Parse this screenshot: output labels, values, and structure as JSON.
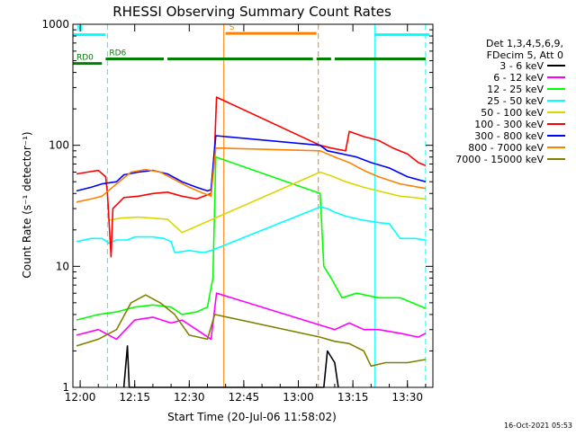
{
  "chart_data": {
    "type": "line",
    "title": "RHESSI Observing Summary Count Rates",
    "xlabel": "Start Time (20-Jul-06 11:58:02)",
    "ylabel": "Count Rate (s⁻¹ detector⁻¹)",
    "yscale": "log",
    "xlim": [
      "11:58",
      "13:37"
    ],
    "ylim": [
      1,
      1000
    ],
    "x_ticks": [
      "12:00",
      "12:15",
      "12:30",
      "12:45",
      "13:00",
      "13:15",
      "13:30"
    ],
    "y_ticks": [
      1,
      10,
      100,
      1000
    ],
    "grid": false,
    "legend_position": "right",
    "legend_header": [
      "Det 1,3,4,5,6,9,",
      "FDecim 5, Att 0"
    ],
    "footer_timestamp": "16-Oct-2021 05:53",
    "series": [
      {
        "name": "3 - 6 keV",
        "color": "#000000",
        "points": [
          [
            "12:12",
            1.0
          ],
          [
            "12:13",
            2.2
          ],
          [
            "12:13.5",
            1.0
          ],
          [
            "12:37",
            1.0
          ],
          [
            "13:07",
            1.0
          ],
          [
            "13:08",
            2.0
          ],
          [
            "13:10",
            1.6
          ],
          [
            "13:11",
            1.0
          ]
        ]
      },
      {
        "name": "6 - 12 keV",
        "color": "#ff00ff",
        "points": [
          [
            "11:59",
            2.7
          ],
          [
            "12:05",
            3.0
          ],
          [
            "12:10",
            2.5
          ],
          [
            "12:15",
            3.6
          ],
          [
            "12:20",
            3.8
          ],
          [
            "12:25",
            3.4
          ],
          [
            "12:28",
            3.6
          ],
          [
            "12:32",
            3.0
          ],
          [
            "12:36",
            2.5
          ],
          [
            "12:37.5",
            6.0
          ],
          [
            "13:07",
            3.2
          ],
          [
            "13:10",
            3.0
          ],
          [
            "13:14",
            3.4
          ],
          [
            "13:18",
            3.0
          ],
          [
            "13:22",
            3.0
          ],
          [
            "13:28",
            2.8
          ],
          [
            "13:33",
            2.6
          ],
          [
            "13:35",
            2.8
          ]
        ]
      },
      {
        "name": "12 - 25 keV",
        "color": "#00ff00",
        "points": [
          [
            "11:59",
            3.6
          ],
          [
            "12:05",
            4.0
          ],
          [
            "12:10",
            4.2
          ],
          [
            "12:15",
            4.6
          ],
          [
            "12:20",
            4.8
          ],
          [
            "12:25",
            4.6
          ],
          [
            "12:28",
            4.0
          ],
          [
            "12:32",
            4.2
          ],
          [
            "12:35",
            4.6
          ],
          [
            "12:36.5",
            8.0
          ],
          [
            "12:37.3",
            80.0
          ],
          [
            "13:06",
            40.0
          ],
          [
            "13:07",
            10.0
          ],
          [
            "13:09",
            8.0
          ],
          [
            "13:12",
            5.5
          ],
          [
            "13:16",
            6.0
          ],
          [
            "13:22",
            5.5
          ],
          [
            "13:28",
            5.5
          ],
          [
            "13:35",
            4.5
          ]
        ]
      },
      {
        "name": "25 - 50 keV",
        "color": "#00ffff",
        "points": [
          [
            "11:59",
            16.0
          ],
          [
            "12:03",
            17.0
          ],
          [
            "12:06",
            17.0
          ],
          [
            "12:08",
            15.5
          ],
          [
            "12:10",
            16.5
          ],
          [
            "12:13",
            16.5
          ],
          [
            "12:15",
            17.5
          ],
          [
            "12:20",
            17.5
          ],
          [
            "12:23",
            17.0
          ],
          [
            "12:25",
            16.0
          ],
          [
            "12:26",
            13.0
          ],
          [
            "12:30",
            13.5
          ],
          [
            "12:34",
            13.0
          ],
          [
            "12:36",
            13.5
          ],
          [
            "13:06",
            31.0
          ],
          [
            "13:08",
            30.0
          ],
          [
            "13:10",
            28.0
          ],
          [
            "13:13",
            26.0
          ],
          [
            "13:18",
            24.0
          ],
          [
            "13:22",
            23.0
          ],
          [
            "13:25",
            22.5
          ],
          [
            "13:28",
            17.0
          ],
          [
            "13:32",
            17.0
          ],
          [
            "13:35",
            16.5
          ]
        ]
      },
      {
        "name": "50 - 100 keV",
        "color": "#d8d800",
        "points": [
          [
            "12:08",
            24.0
          ],
          [
            "12:11",
            25.0
          ],
          [
            "12:16",
            25.5
          ],
          [
            "12:20",
            25.0
          ],
          [
            "12:24",
            24.5
          ],
          [
            "12:28",
            19.0
          ],
          [
            "13:06",
            60.0
          ],
          [
            "13:09",
            56.0
          ],
          [
            "13:13",
            50.0
          ],
          [
            "13:18",
            45.0
          ],
          [
            "13:22",
            42.0
          ],
          [
            "13:28",
            38.0
          ],
          [
            "13:32",
            37.0
          ],
          [
            "13:35",
            36.0
          ]
        ]
      },
      {
        "name": "100 - 300 keV",
        "color": "#ff0000",
        "points": [
          [
            "11:59",
            58.0
          ],
          [
            "12:02",
            60.0
          ],
          [
            "12:05",
            62.0
          ],
          [
            "12:07",
            55.0
          ],
          [
            "12:07.5",
            40.0
          ],
          [
            "12:08.5",
            12.0
          ],
          [
            "12:09",
            30.0
          ],
          [
            "12:12",
            37.0
          ],
          [
            "12:16",
            38.0
          ],
          [
            "12:20",
            40.0
          ],
          [
            "12:24",
            41.0
          ],
          [
            "12:28",
            38.0
          ],
          [
            "12:32",
            36.0
          ],
          [
            "12:36",
            40.0
          ],
          [
            "12:37",
            100.0
          ],
          [
            "12:37.5",
            250.0
          ],
          [
            "13:06",
            100.0
          ],
          [
            "13:09",
            95.0
          ],
          [
            "13:13",
            90.0
          ],
          [
            "13:14",
            130.0
          ],
          [
            "13:18",
            118.0
          ],
          [
            "13:22",
            110.0
          ],
          [
            "13:26",
            95.0
          ],
          [
            "13:30",
            85.0
          ],
          [
            "13:33",
            72.0
          ],
          [
            "13:35",
            68.0
          ]
        ]
      },
      {
        "name": "300 - 800 keV",
        "color": "#0000ff",
        "points": [
          [
            "11:59",
            42.0
          ],
          [
            "12:03",
            45.0
          ],
          [
            "12:06",
            48.0
          ],
          [
            "12:10",
            50.0
          ],
          [
            "12:12",
            57.0
          ],
          [
            "12:16",
            60.0
          ],
          [
            "12:20",
            62.0
          ],
          [
            "12:24",
            58.0
          ],
          [
            "12:28",
            50.0
          ],
          [
            "12:32",
            45.0
          ],
          [
            "12:35",
            42.0
          ],
          [
            "12:36",
            43.0
          ],
          [
            "12:37.3",
            120.0
          ],
          [
            "13:06",
            100.0
          ],
          [
            "13:08",
            90.0
          ],
          [
            "13:12",
            85.0
          ],
          [
            "13:16",
            80.0
          ],
          [
            "13:20",
            72.0
          ],
          [
            "13:25",
            65.0
          ],
          [
            "13:30",
            55.0
          ],
          [
            "13:35",
            50.0
          ]
        ]
      },
      {
        "name": "800 - 7000 keV",
        "color": "#ff8000",
        "points": [
          [
            "11:59",
            34.0
          ],
          [
            "12:03",
            36.0
          ],
          [
            "12:06",
            38.0
          ],
          [
            "12:10",
            48.0
          ],
          [
            "12:14",
            60.0
          ],
          [
            "12:18",
            63.0
          ],
          [
            "12:22",
            60.0
          ],
          [
            "12:26",
            52.0
          ],
          [
            "12:30",
            45.0
          ],
          [
            "12:34",
            40.0
          ],
          [
            "12:36",
            38.0
          ],
          [
            "12:37.3",
            95.0
          ],
          [
            "13:06",
            90.0
          ],
          [
            "13:10",
            80.0
          ],
          [
            "13:14",
            72.0
          ],
          [
            "13:18",
            62.0
          ],
          [
            "13:22",
            55.0
          ],
          [
            "13:28",
            48.0
          ],
          [
            "13:35",
            44.0
          ]
        ]
      },
      {
        "name": "7000 - 15000 keV",
        "color": "#808000",
        "points": [
          [
            "11:59",
            2.2
          ],
          [
            "12:05",
            2.5
          ],
          [
            "12:10",
            3.0
          ],
          [
            "12:14",
            5.0
          ],
          [
            "12:18",
            5.8
          ],
          [
            "12:22",
            5.0
          ],
          [
            "12:26",
            4.0
          ],
          [
            "12:30",
            2.7
          ],
          [
            "12:35",
            2.5
          ],
          [
            "12:37",
            4.0
          ],
          [
            "13:06",
            2.6
          ],
          [
            "13:10",
            2.4
          ],
          [
            "13:14",
            2.3
          ],
          [
            "13:18",
            2.0
          ],
          [
            "13:20",
            1.5
          ],
          [
            "13:24",
            1.6
          ],
          [
            "13:30",
            1.6
          ],
          [
            "13:35",
            1.7
          ]
        ]
      }
    ],
    "annotations": {
      "flags": [
        {
          "label": "N",
          "color": "#00ffff",
          "segments": [
            [
              "11:58",
              "12:07"
            ],
            [
              "13:21",
              "13:36"
            ]
          ],
          "level": 0.84
        },
        {
          "label": "RD0",
          "color": "#008000",
          "segments": [
            [
              "11:58",
              "12:06"
            ]
          ],
          "level": 0.4
        },
        {
          "label": "RD6",
          "color": "#008000",
          "segments": [
            [
              "12:07",
              "12:23"
            ],
            [
              "12:24",
              "13:04"
            ],
            [
              "13:05",
              "13:09"
            ],
            [
              "13:10",
              "13:35"
            ]
          ],
          "level": 0.47
        },
        {
          "label": "S",
          "color": "#ff8000",
          "segments": [
            [
              "12:40",
              "13:05"
            ]
          ],
          "level": 0.86
        }
      ],
      "vertical_lines": [
        {
          "time": "11:58",
          "color": "#00ffff",
          "style": "solid"
        },
        {
          "time": "12:07.5",
          "color": "#00ffff",
          "style": "dashed"
        },
        {
          "time": "12:39.5",
          "color": "#ff8000",
          "style": "solid"
        },
        {
          "time": "13:05.5",
          "color": "#ff8000",
          "style": "dashed"
        },
        {
          "time": "13:21",
          "color": "#00ffff",
          "style": "solid"
        },
        {
          "time": "13:35",
          "color": "#00ffff",
          "style": "dashed"
        }
      ]
    }
  }
}
